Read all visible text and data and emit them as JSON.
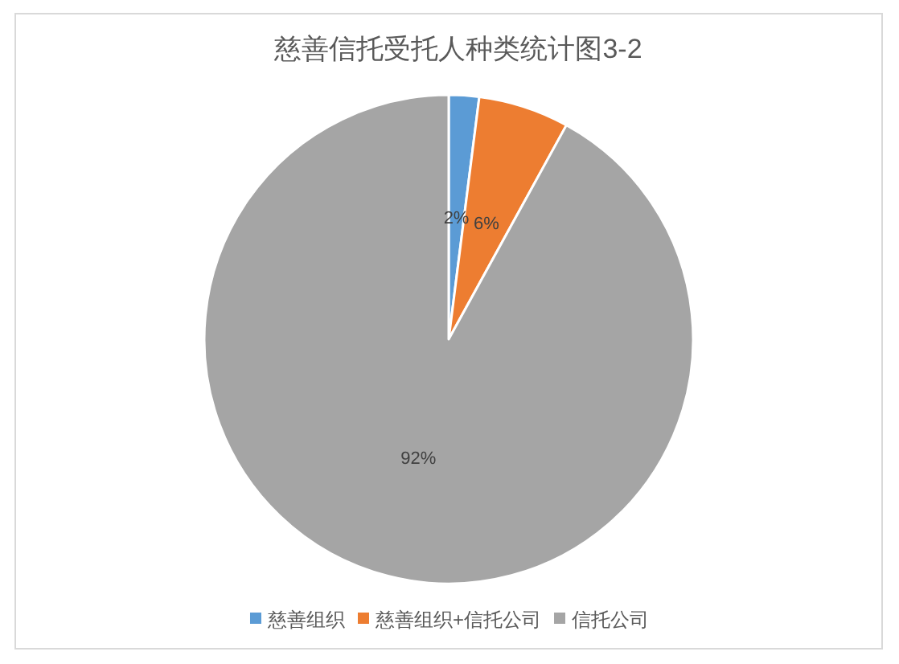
{
  "chart_data": {
    "type": "pie",
    "title": "慈善信托受托人种类统计图3-2",
    "categories": [
      "慈善组织",
      "慈善组织+信托公司",
      "信托公司"
    ],
    "values": [
      2,
      6,
      92
    ],
    "colors": [
      "#5b9bd5",
      "#ed7d31",
      "#a5a5a5"
    ],
    "value_labels": [
      "2%",
      "6%",
      "92%"
    ],
    "legend": "bottom"
  }
}
